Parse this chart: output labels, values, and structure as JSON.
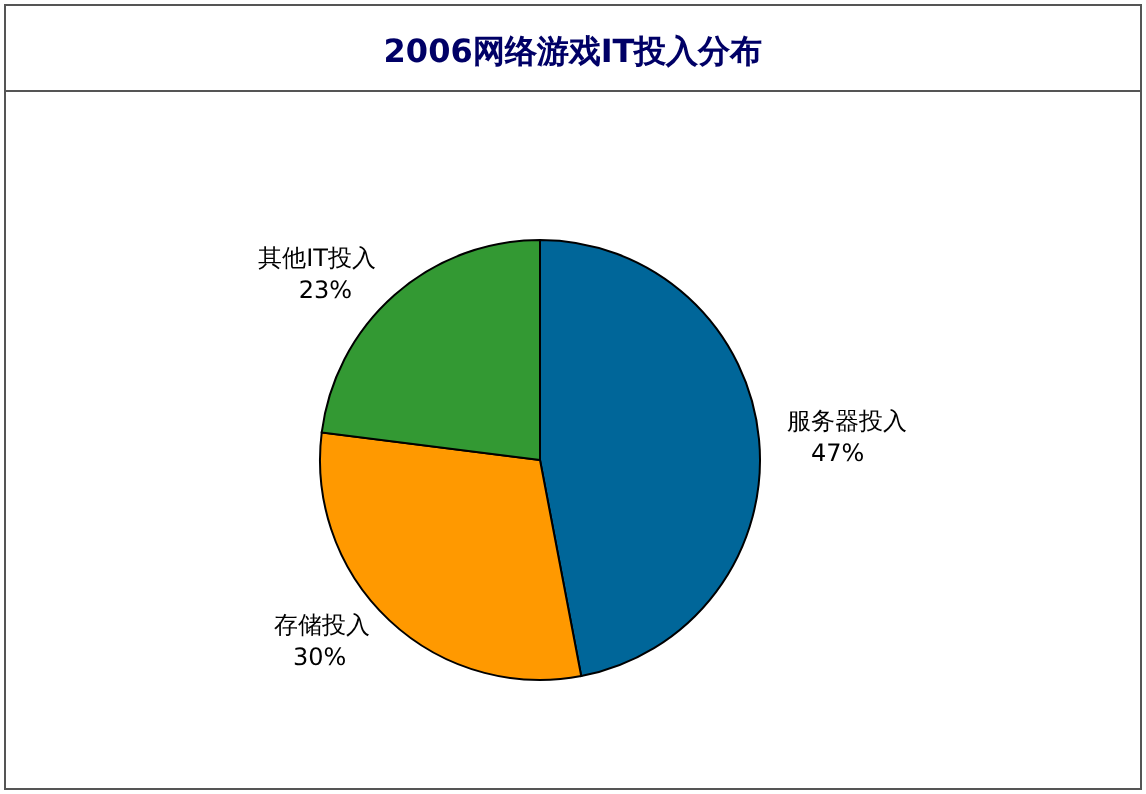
{
  "chart_data": {
    "type": "pie",
    "title": "2006网络游戏IT投入分布",
    "categories": [
      "服务器投入",
      "存储投入",
      "其他IT投入"
    ],
    "values": [
      47,
      30,
      23
    ],
    "colors": [
      "#006699",
      "#ff9900",
      "#339933"
    ],
    "value_labels": [
      "47%",
      "30%",
      "23%"
    ]
  }
}
